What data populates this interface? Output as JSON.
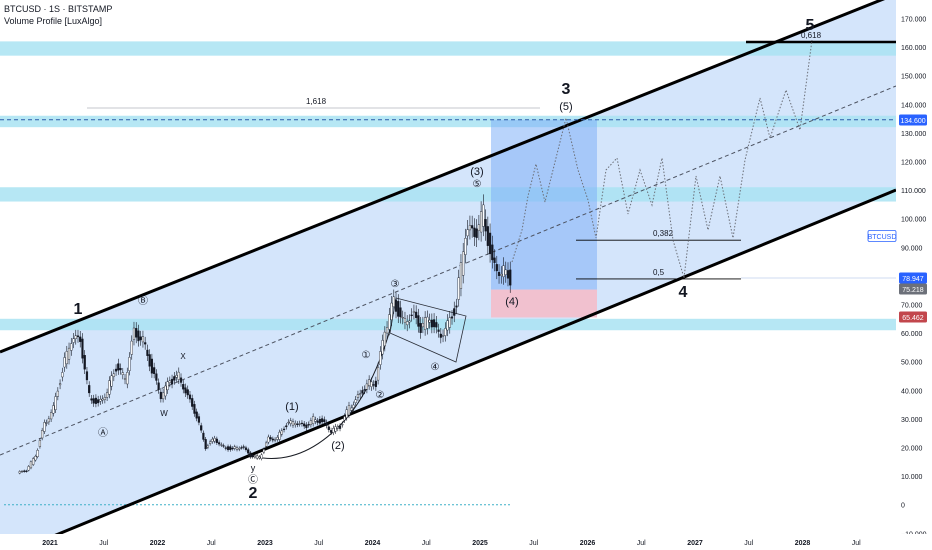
{
  "header": {
    "symbol_line": "BTCUSD · 1S · BITSTAMP",
    "indicator": "Volume Profile [LuxAlgo]"
  },
  "colors": {
    "channel_fill": "#cfe2fb",
    "volume_band": "#a9e3f2",
    "projection_box": "#7fb0f7",
    "stop_box": "#f2bfcc",
    "candle": "#131722",
    "accent_blue": "#2962ff",
    "red_label": "#c2464c",
    "grey_label": "#6c7079"
  },
  "chart_data": {
    "type": "candlestick",
    "symbol": "BTCUSD",
    "exchange": "BITSTAMP",
    "scale": "log",
    "ylim": [
      -10000,
      180000
    ],
    "y_ticks": [
      "170.000",
      "160.000",
      "150.000",
      "140.000",
      "130.000",
      "120.000",
      "110.000",
      "100.000",
      "90.000",
      "80.000",
      "70.000",
      "60.000",
      "50.000",
      "40.000",
      "30.000",
      "20.000",
      "10.000",
      "0",
      "−10.000"
    ],
    "x_ticks": [
      "2021",
      "Jul",
      "2022",
      "Jul",
      "2023",
      "Jul",
      "2024",
      "Jul",
      "2025",
      "Jul",
      "2026",
      "Jul",
      "2027",
      "Jul",
      "2028",
      "Jul"
    ],
    "price_labels": [
      {
        "text": "BTCUSD",
        "style": "outline"
      },
      {
        "text": "78.947",
        "style": "blue"
      },
      {
        "text": "75.218",
        "style": "grey"
      },
      {
        "text": "65.462",
        "style": "red"
      },
      {
        "text": "134.600",
        "style": "solid-blue"
      }
    ],
    "series": [
      {
        "name": "BTCUSD",
        "x": [
          "2020-10",
          "2020-11",
          "2020-12",
          "2021-01",
          "2021-02",
          "2021-03",
          "2021-04",
          "2021-05",
          "2021-06",
          "2021-07",
          "2021-08",
          "2021-09",
          "2021-10",
          "2021-11",
          "2021-12",
          "2022-01",
          "2022-02",
          "2022-03",
          "2022-04",
          "2022-05",
          "2022-06",
          "2022-07",
          "2022-08",
          "2022-09",
          "2022-10",
          "2022-11",
          "2022-12",
          "2023-01",
          "2023-02",
          "2023-03",
          "2023-04",
          "2023-05",
          "2023-06",
          "2023-07",
          "2023-08",
          "2023-09",
          "2023-10",
          "2023-11",
          "2023-12",
          "2024-01",
          "2024-02",
          "2024-03",
          "2024-04",
          "2024-05",
          "2024-06",
          "2024-07",
          "2024-08",
          "2024-09",
          "2024-10",
          "2024-11",
          "2024-12",
          "2025-01",
          "2025-02",
          "2025-03",
          "2025-04"
        ],
        "y": [
          12000,
          17000,
          28000,
          34000,
          47000,
          58000,
          57000,
          38000,
          35000,
          40000,
          48000,
          44000,
          60000,
          58000,
          47000,
          38000,
          43000,
          45000,
          38000,
          31000,
          20000,
          23000,
          20000,
          19500,
          20500,
          17000,
          16500,
          23000,
          23500,
          28000,
          29000,
          27000,
          30000,
          29000,
          26000,
          27000,
          34000,
          37500,
          42500,
          42500,
          61000,
          71000,
          64000,
          67000,
          62000,
          65000,
          59000,
          63000,
          70000,
          96000,
          94000,
          102000,
          84000,
          82000,
          79000
        ]
      },
      {
        "name": "Projection",
        "x": [
          "2025-04",
          "2025-08",
          "2025-10",
          "2026-01",
          "2026-06",
          "2026-09",
          "2027-01",
          "2027-06",
          "2027-11",
          "2028-01"
        ],
        "y": [
          79000,
          120000,
          135000,
          90000,
          110000,
          92000,
          80000,
          110000,
          140000,
          162000
        ]
      }
    ],
    "fib_levels": [
      {
        "label": "1,618",
        "value": 141000
      },
      {
        "label": "0,382",
        "value": 92500
      },
      {
        "label": "0,5",
        "value": 78947
      },
      {
        "label": "0,618",
        "value": 162000
      }
    ],
    "wave_labels": [
      {
        "text": "1",
        "x": "2021-04",
        "y": 63000
      },
      {
        "text": "2",
        "x": "2022-11",
        "y": 16000
      },
      {
        "text": "3",
        "x": "2025-10",
        "y": 141000
      },
      {
        "text": "4",
        "x": "2026-12",
        "y": 77000
      },
      {
        "text": "5",
        "x": "2028-01",
        "y": 170000
      },
      {
        "text": "(1)",
        "x": "2023-04",
        "y": 31000
      },
      {
        "text": "(2)",
        "x": "2023-09",
        "y": 22000
      },
      {
        "text": "(3)",
        "x": "2024-12",
        "y": 112000
      },
      {
        "text": "(4)",
        "x": "2025-04",
        "y": 70000
      },
      {
        "text": "(5)",
        "x": "2025-10",
        "y": 137000
      },
      {
        "text": "Ⓐ",
        "x": "2021-08",
        "y": 25000
      },
      {
        "text": "Ⓑ",
        "x": "2021-11",
        "y": 68000
      },
      {
        "text": "Ⓒ",
        "x": "2022-11",
        "y": 9000
      },
      {
        "text": "①",
        "x": "2023-11",
        "y": 52000
      },
      {
        "text": "②",
        "x": "2024-01",
        "y": 38000
      },
      {
        "text": "③",
        "x": "2024-03",
        "y": 74000
      },
      {
        "text": "④",
        "x": "2024-07",
        "y": 48000
      },
      {
        "text": "⑤",
        "x": "2024-12",
        "y": 108000
      },
      {
        "text": "W",
        "x": "2022-01",
        "y": 31000
      },
      {
        "text": "X",
        "x": "2022-03",
        "y": 50000
      },
      {
        "text": "y",
        "x": "2022-11",
        "y": 13000
      }
    ]
  }
}
